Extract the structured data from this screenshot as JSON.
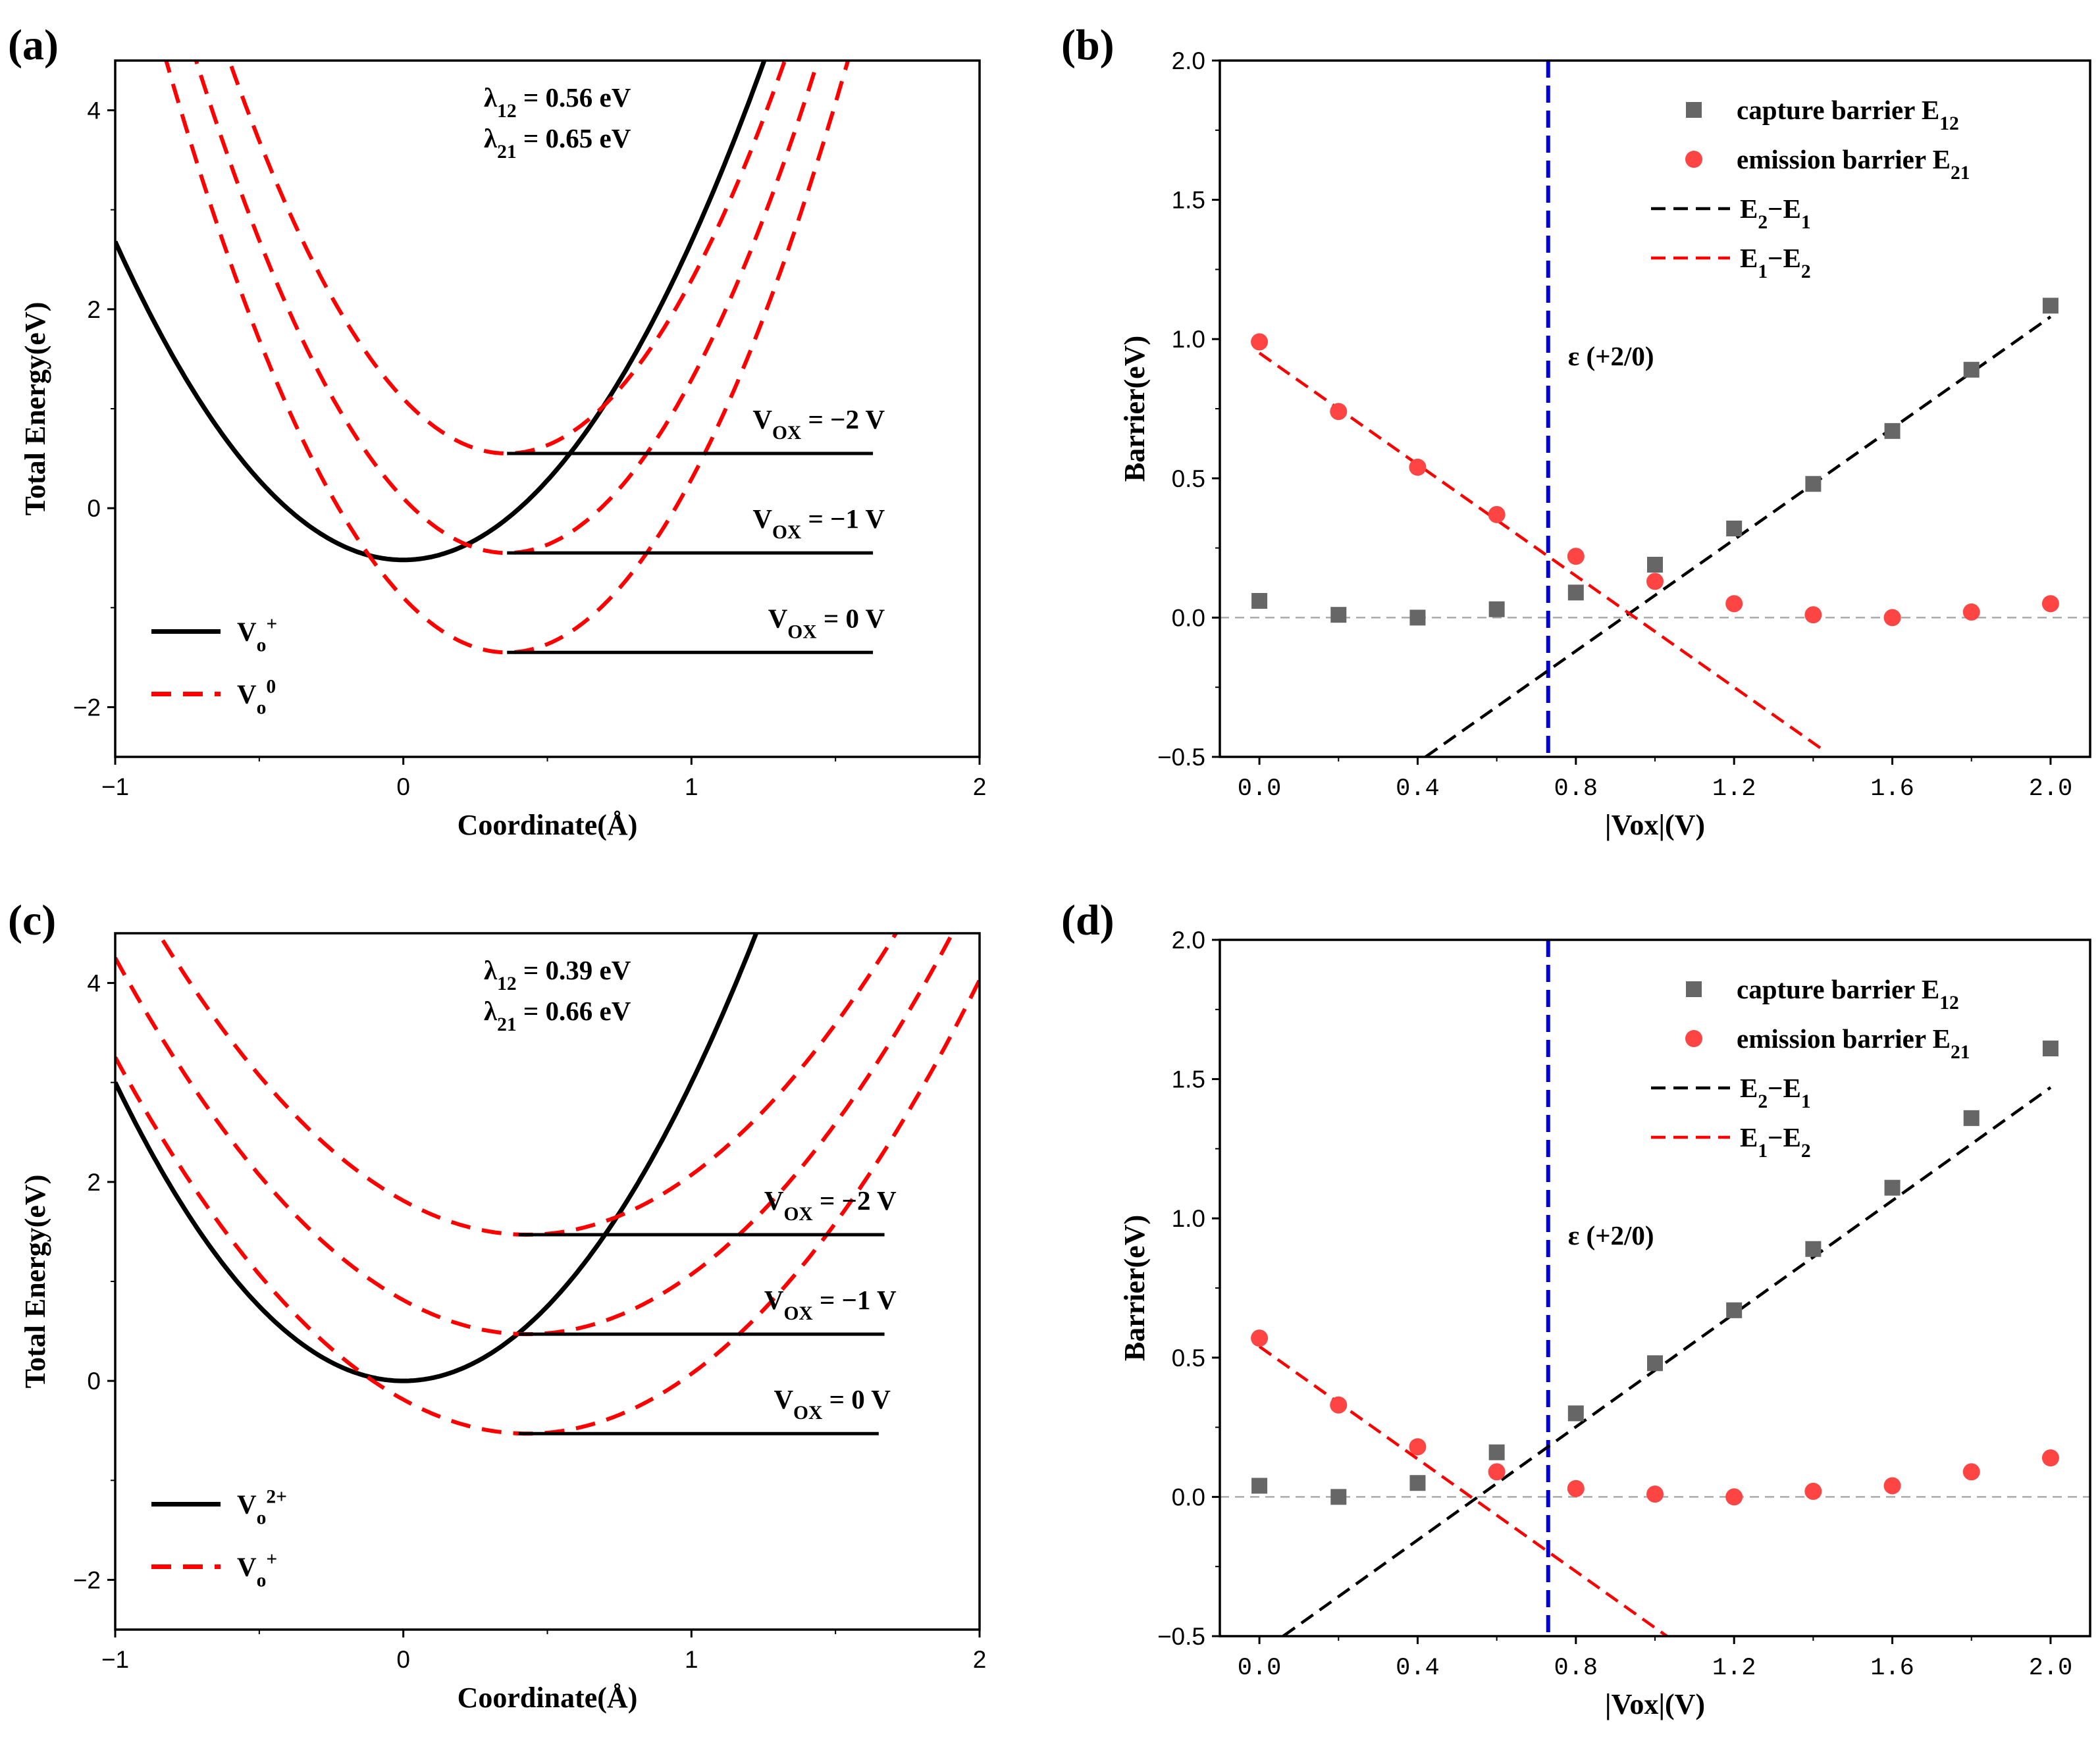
{
  "figure": "four-panel",
  "chart_data": [
    {
      "panel": "(a)",
      "type": "line",
      "xlabel": "Coordinate(Å)",
      "ylabel": "Total Energy(eV)",
      "xlim": [
        -1,
        2
      ],
      "ylim": [
        -2.5,
        4.5
      ],
      "xticks": [
        "−1",
        "0",
        "1",
        "2"
      ],
      "yticks": [
        "−2",
        "0",
        "2",
        "4"
      ],
      "annotations": [
        "λ12 = 0.56 eV",
        "λ21 = 0.65 eV"
      ],
      "legend": [
        "Vo+",
        "Vo0"
      ],
      "series": [
        {
          "name": "Vo+",
          "style": "solid",
          "color": "#000000",
          "x0": 0,
          "y0": -0.52,
          "k": 3.2
        },
        {
          "name": "Vo0 (VOX = −2 V)",
          "style": "dashed",
          "color": "#ff0000",
          "x0": 0.36,
          "y0": 0.55,
          "k": 4.25
        },
        {
          "name": "Vo0 (VOX = −1 V)",
          "style": "dashed",
          "color": "#ff0000",
          "x0": 0.36,
          "y0": -0.45,
          "k": 4.25
        },
        {
          "name": "Vo0 (VOX = 0 V)",
          "style": "dashed",
          "color": "#ff0000",
          "x0": 0.36,
          "y0": -1.45,
          "k": 4.25
        }
      ],
      "levels": [
        {
          "label": "VOX = −2 V",
          "y": 0.55,
          "x_from": 0.36,
          "x_to": 1.63
        },
        {
          "label": "VOX = −1 V",
          "y": -0.45,
          "x_from": 0.36,
          "x_to": 1.63
        },
        {
          "label": "VOX = 0 V",
          "y": -1.45,
          "x_from": 0.36,
          "x_to": 1.63
        }
      ]
    },
    {
      "panel": "(b)",
      "type": "scatter",
      "xlabel": "|Vox|(V)",
      "ylabel": "Barrier(eV)",
      "xlim": [
        -0.1,
        2.1
      ],
      "ylim": [
        -0.5,
        2.0
      ],
      "xticks": [
        "0.0",
        "0.4",
        "0.8",
        "1.2",
        "1.6",
        "2.0"
      ],
      "yticks": [
        "−0.5",
        "0.0",
        "0.5",
        "1.0",
        "1.5",
        "2.0"
      ],
      "vline": {
        "x": 0.73,
        "label": "ε (+2/0)",
        "color": "#0000dd"
      },
      "x": [
        0.0,
        0.2,
        0.4,
        0.6,
        0.8,
        1.0,
        1.2,
        1.4,
        1.6,
        1.8,
        2.0
      ],
      "series": [
        {
          "name": "capture barrier E12",
          "marker": "square",
          "color": "#666666",
          "values": [
            0.06,
            0.01,
            0.0,
            0.03,
            0.09,
            0.19,
            0.32,
            0.48,
            0.67,
            0.89,
            1.12
          ]
        },
        {
          "name": "emission barrier E21",
          "marker": "circle",
          "color": "#ff4444",
          "values": [
            0.99,
            0.74,
            0.54,
            0.37,
            0.22,
            0.13,
            0.05,
            0.01,
            0.0,
            0.02,
            0.05
          ]
        }
      ],
      "lines": [
        {
          "name": "E2−E1",
          "color": "#000000",
          "x": [
            0.42,
            2.0
          ],
          "y": [
            -0.5,
            1.08
          ]
        },
        {
          "name": "E1−E2",
          "color": "#ff0000",
          "x": [
            0.0,
            1.42
          ],
          "y": [
            0.95,
            -0.47
          ]
        }
      ],
      "legend": [
        "capture barrier E12",
        "emission barrier E21",
        "E2−E1",
        "E1−E2"
      ]
    },
    {
      "panel": "(c)",
      "type": "line",
      "xlabel": "Coordinate(Å)",
      "ylabel": "Total Energy(eV)",
      "xlim": [
        -1,
        2
      ],
      "ylim": [
        -2.5,
        4.5
      ],
      "xticks": [
        "−1",
        "0",
        "1",
        "2"
      ],
      "yticks": [
        "−2",
        "0",
        "2",
        "4"
      ],
      "annotations": [
        "λ12 = 0.39 eV",
        "λ21 = 0.66 eV"
      ],
      "legend": [
        "Vo2+",
        "Vo+"
      ],
      "series": [
        {
          "name": "Vo2+",
          "style": "solid",
          "color": "#000000",
          "x0": 0,
          "y0": 0.0,
          "k": 3.0
        },
        {
          "name": "Vo+ (VOX = −2 V)",
          "style": "dashed",
          "color": "#ff0000",
          "x0": 0.43,
          "y0": 1.47,
          "k": 1.85
        },
        {
          "name": "Vo+ (VOX = −1 V)",
          "style": "dashed",
          "color": "#ff0000",
          "x0": 0.43,
          "y0": 0.47,
          "k": 1.85
        },
        {
          "name": "Vo+ (VOX = 0 V)",
          "style": "dashed",
          "color": "#ff0000",
          "x0": 0.43,
          "y0": -0.53,
          "k": 1.85
        }
      ],
      "levels": [
        {
          "label": "VOX = −2 V",
          "y": 1.47,
          "x_from": 0.4,
          "x_to": 1.67
        },
        {
          "label": "VOX = −1 V",
          "y": 0.47,
          "x_from": 0.4,
          "x_to": 1.67
        },
        {
          "label": "VOX = 0 V",
          "y": -0.53,
          "x_from": 0.4,
          "x_to": 1.65
        }
      ]
    },
    {
      "panel": "(d)",
      "type": "scatter",
      "xlabel": "|Vox|(V)",
      "ylabel": "Barrier(eV)",
      "xlim": [
        -0.1,
        2.1
      ],
      "ylim": [
        -0.5,
        2.0
      ],
      "xticks": [
        "0.0",
        "0.4",
        "0.8",
        "1.2",
        "1.6",
        "2.0"
      ],
      "yticks": [
        "−0.5",
        "0.0",
        "0.5",
        "1.0",
        "1.5",
        "2.0"
      ],
      "vline": {
        "x": 0.73,
        "label": "ε (+2/0)",
        "color": "#0000dd"
      },
      "x": [
        0.0,
        0.2,
        0.4,
        0.6,
        0.8,
        1.0,
        1.2,
        1.4,
        1.6,
        1.8,
        2.0
      ],
      "series": [
        {
          "name": "capture barrier E12",
          "marker": "square",
          "color": "#666666",
          "values": [
            0.04,
            0.0,
            0.05,
            0.16,
            0.3,
            0.48,
            0.67,
            0.89,
            1.11,
            1.36,
            1.61
          ]
        },
        {
          "name": "emission barrier E21",
          "marker": "circle",
          "color": "#ff4444",
          "values": [
            0.57,
            0.33,
            0.18,
            0.09,
            0.03,
            0.01,
            0.0,
            0.02,
            0.04,
            0.09,
            0.14
          ]
        }
      ],
      "lines": [
        {
          "name": "E2−E1",
          "color": "#000000",
          "x": [
            0.06,
            2.0
          ],
          "y": [
            -0.5,
            1.47
          ]
        },
        {
          "name": "E1−E2",
          "color": "#ff0000",
          "x": [
            0.0,
            1.03
          ],
          "y": [
            0.54,
            -0.5
          ]
        }
      ],
      "legend": [
        "capture barrier E12",
        "emission barrier E21",
        "E2−E1",
        "E1−E2"
      ]
    }
  ]
}
